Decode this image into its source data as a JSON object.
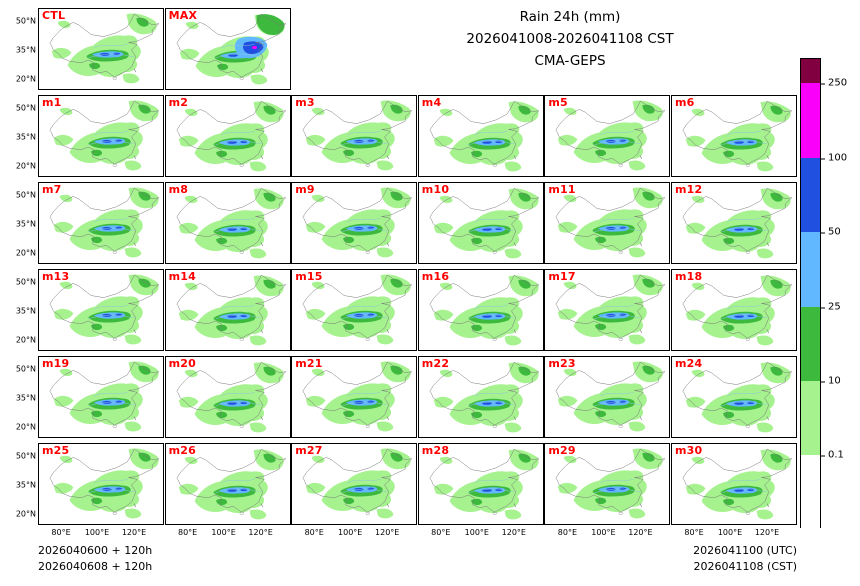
{
  "title": {
    "line1": "Rain 24h (mm)",
    "line2": "2026041008-2026041108 CST",
    "line3": "CMA-GEPS"
  },
  "panel_label_color": "#ff0000",
  "panels": [
    {
      "label": "CTL"
    },
    {
      "label": "MAX"
    },
    {
      "label": "m1"
    },
    {
      "label": "m2"
    },
    {
      "label": "m3"
    },
    {
      "label": "m4"
    },
    {
      "label": "m5"
    },
    {
      "label": "m6"
    },
    {
      "label": "m7"
    },
    {
      "label": "m8"
    },
    {
      "label": "m9"
    },
    {
      "label": "m10"
    },
    {
      "label": "m11"
    },
    {
      "label": "m12"
    },
    {
      "label": "m13"
    },
    {
      "label": "m14"
    },
    {
      "label": "m15"
    },
    {
      "label": "m16"
    },
    {
      "label": "m17"
    },
    {
      "label": "m18"
    },
    {
      "label": "m19"
    },
    {
      "label": "m20"
    },
    {
      "label": "m21"
    },
    {
      "label": "m22"
    },
    {
      "label": "m23"
    },
    {
      "label": "m24"
    },
    {
      "label": "m25"
    },
    {
      "label": "m26"
    },
    {
      "label": "m27"
    },
    {
      "label": "m28"
    },
    {
      "label": "m29"
    },
    {
      "label": "m30"
    }
  ],
  "axes": {
    "y_ticks": [
      "50°N",
      "35°N",
      "20°N"
    ],
    "x_ticks": [
      "80°E",
      "100°E",
      "120°E"
    ]
  },
  "colorbar": {
    "ticks": [
      "250",
      "100",
      "50",
      "25",
      "10",
      "0.1"
    ],
    "colors_top_to_bottom": [
      "#800040",
      "#fa00fa",
      "#2050df",
      "#61b8ff",
      "#3dba3d",
      "#a6f28f",
      "#ffffff"
    ]
  },
  "footer": {
    "left_line1": "2026040600 + 120h",
    "left_line2": "2026040608 + 120h",
    "right_line1": "2026041100 (UTC)",
    "right_line2": "2026041108 (CST)"
  },
  "chart_data": {
    "type": "heatmap",
    "title": "Rain 24h (mm)",
    "subtitle": "2026041008-2026041108 CST",
    "model": "CMA-GEPS",
    "description": "Ensemble multi-panel 24h accumulated precipitation maps over China",
    "panel_labels": [
      "CTL",
      "MAX",
      "m1",
      "m2",
      "m3",
      "m4",
      "m5",
      "m6",
      "m7",
      "m8",
      "m9",
      "m10",
      "m11",
      "m12",
      "m13",
      "m14",
      "m15",
      "m16",
      "m17",
      "m18",
      "m19",
      "m20",
      "m21",
      "m22",
      "m23",
      "m24",
      "m25",
      "m26",
      "m27",
      "m28",
      "m29",
      "m30"
    ],
    "grid": {
      "rows": 6,
      "cols": 6,
      "first_row_panels": 2
    },
    "x_ticks": [
      "80°E",
      "100°E",
      "120°E"
    ],
    "y_ticks": [
      "50°N",
      "35°N",
      "20°N"
    ],
    "levels_mm": [
      0.1,
      10,
      25,
      50,
      100,
      250
    ],
    "level_colors_low_to_high": [
      "#ffffff",
      "#a6f28f",
      "#3dba3d",
      "#61b8ff",
      "#2050df",
      "#fa00fa",
      "#800040"
    ],
    "legend_position": "right",
    "init_times": [
      "2026040600 + 120h",
      "2026040608 + 120h"
    ],
    "valid_times": [
      "2026041100 (UTC)",
      "2026041108 (CST)"
    ]
  }
}
